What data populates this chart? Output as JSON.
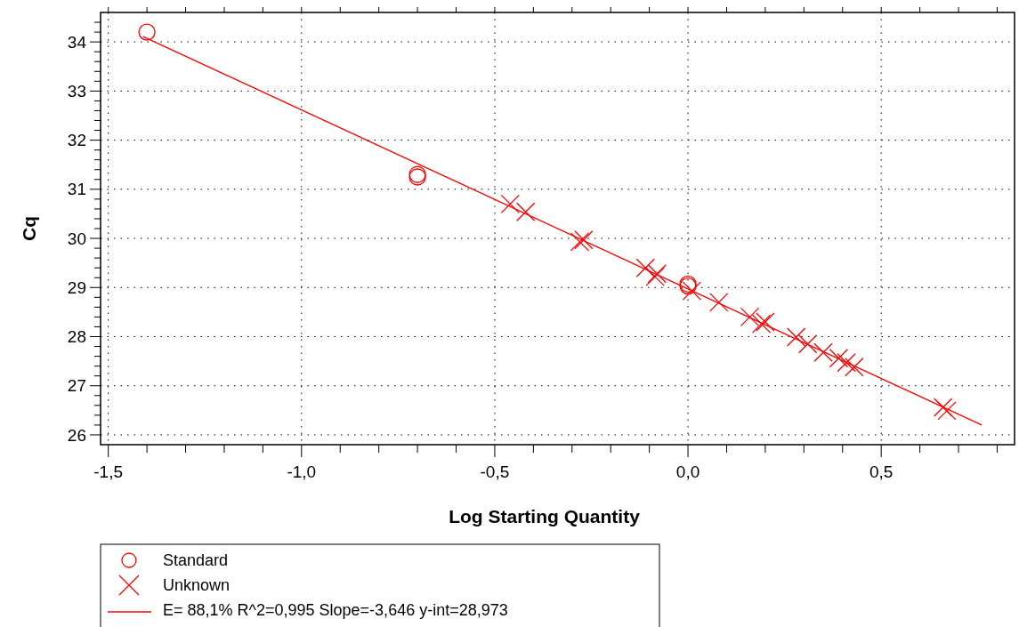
{
  "chart_data": {
    "type": "scatter",
    "xlabel": "Log Starting Quantity",
    "ylabel": "Cq",
    "xlim": [
      -1.52,
      0.845
    ],
    "ylim": [
      25.8,
      34.6
    ],
    "xticks": [
      {
        "value": -1.5,
        "label": "-1,5"
      },
      {
        "value": -1.4,
        "label": null
      },
      {
        "value": -1.3,
        "label": null
      },
      {
        "value": -1.2,
        "label": null
      },
      {
        "value": -1.1,
        "label": null
      },
      {
        "value": -1.0,
        "label": "-1,0"
      },
      {
        "value": -0.9,
        "label": null
      },
      {
        "value": -0.8,
        "label": null
      },
      {
        "value": -0.7,
        "label": null
      },
      {
        "value": -0.6,
        "label": null
      },
      {
        "value": -0.5,
        "label": "-0,5"
      },
      {
        "value": -0.4,
        "label": null
      },
      {
        "value": -0.3,
        "label": null
      },
      {
        "value": -0.2,
        "label": null
      },
      {
        "value": -0.1,
        "label": null
      },
      {
        "value": 0,
        "label": "0,0"
      },
      {
        "value": 0.1,
        "label": null
      },
      {
        "value": 0.2,
        "label": null
      },
      {
        "value": 0.3,
        "label": null
      },
      {
        "value": 0.4,
        "label": null
      },
      {
        "value": 0.5,
        "label": "0,5"
      },
      {
        "value": 0.6,
        "label": null
      },
      {
        "value": 0.7,
        "label": null
      },
      {
        "value": 0.8,
        "label": null
      }
    ],
    "yticks": [
      26,
      {
        "value": 26.2,
        "label": null
      },
      {
        "value": 26.4,
        "label": null
      },
      {
        "value": 26.6,
        "label": null
      },
      {
        "value": 26.8,
        "label": null
      },
      27,
      {
        "value": 27.2,
        "label": null
      },
      {
        "value": 27.4,
        "label": null
      },
      {
        "value": 27.6,
        "label": null
      },
      {
        "value": 27.8,
        "label": null
      },
      28,
      {
        "value": 28.2,
        "label": null
      },
      {
        "value": 28.4,
        "label": null
      },
      {
        "value": 28.6,
        "label": null
      },
      {
        "value": 28.8,
        "label": null
      },
      29,
      {
        "value": 29.2,
        "label": null
      },
      {
        "value": 29.4,
        "label": null
      },
      {
        "value": 29.6,
        "label": null
      },
      {
        "value": 29.8,
        "label": null
      },
      30,
      {
        "value": 30.2,
        "label": null
      },
      {
        "value": 30.4,
        "label": null
      },
      {
        "value": 30.6,
        "label": null
      },
      {
        "value": 30.8,
        "label": null
      },
      31,
      {
        "value": 31.2,
        "label": null
      },
      {
        "value": 31.4,
        "label": null
      },
      {
        "value": 31.6,
        "label": null
      },
      {
        "value": 31.8,
        "label": null
      },
      32,
      {
        "value": 32.2,
        "label": null
      },
      {
        "value": 32.4,
        "label": null
      },
      {
        "value": 32.6,
        "label": null
      },
      {
        "value": 32.8,
        "label": null
      },
      33,
      {
        "value": 33.2,
        "label": null
      },
      {
        "value": 33.4,
        "label": null
      },
      {
        "value": 33.6,
        "label": null
      },
      {
        "value": 33.8,
        "label": null
      },
      34,
      {
        "value": 34.2,
        "label": null
      },
      {
        "value": 34.4,
        "label": null
      }
    ],
    "grid": true,
    "legend": "bottom",
    "series": [
      {
        "name": "Standard",
        "marker": "circle",
        "color": "#ff0000",
        "x": [
          -1.4,
          -0.7,
          -0.7,
          0,
          0
        ],
        "values": [
          34.2,
          31.3,
          31.25,
          29.07,
          29.03
        ]
      },
      {
        "name": "Unknown",
        "marker": "cross",
        "color": "#ff0000",
        "x": [
          -0.46,
          -0.42,
          -0.27,
          -0.28,
          -0.11,
          -0.08,
          -0.085,
          0.01,
          0.08,
          0.16,
          0.19,
          0.2,
          0.28,
          0.31,
          0.35,
          0.39,
          0.41,
          0.43,
          0.66,
          0.67
        ],
        "values": [
          30.7,
          30.54,
          29.97,
          29.93,
          29.4,
          29.28,
          29.22,
          28.93,
          28.7,
          28.4,
          28.26,
          28.3,
          27.99,
          27.85,
          27.68,
          27.56,
          27.47,
          27.38,
          26.56,
          26.49
        ]
      },
      {
        "name": "E= 88,1% R^2=0,995 Slope=-3,646 y-int=28,973",
        "type": "line",
        "marker": "none",
        "color": "#ff0000",
        "x": [
          -1.41,
          0.76
        ],
        "values": [
          34.11,
          26.2
        ]
      }
    ]
  }
}
